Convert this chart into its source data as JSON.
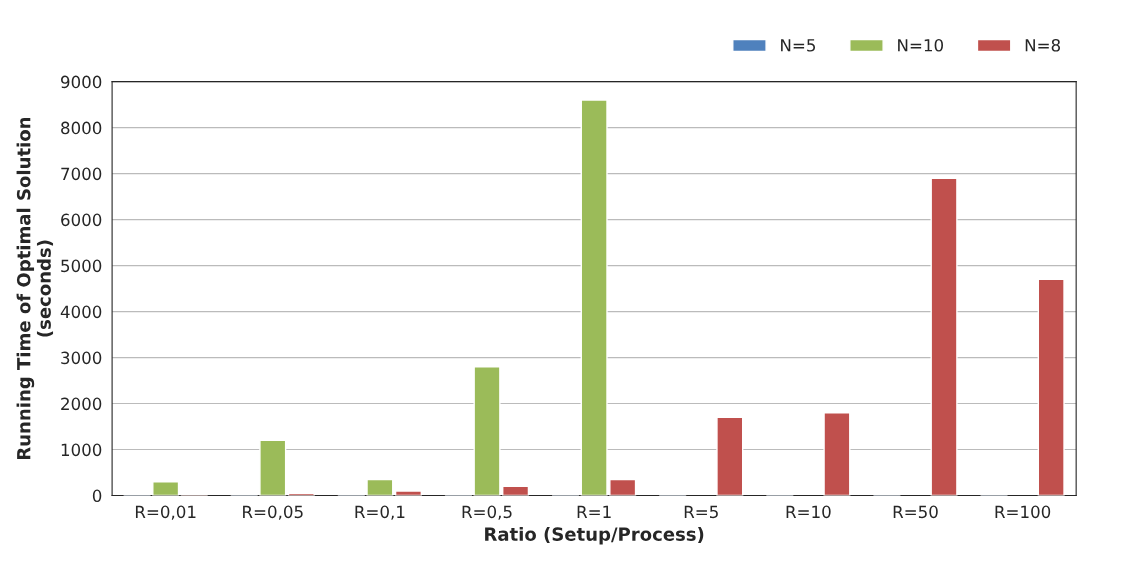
{
  "chart_data": {
    "type": "bar",
    "xlabel": "Ratio (Setup/Process)",
    "ylabel": "Running Time of Optimal Solution\n(seconds)",
    "categories": [
      "R=0,01",
      "R=0,05",
      "R=0,1",
      "R=0,5",
      "R=1",
      "R=5",
      "R=10",
      "R=50",
      "R=100"
    ],
    "series": [
      {
        "name": "N=5",
        "color": "#4f81bd",
        "values": [
          10,
          10,
          10,
          10,
          10,
          10,
          10,
          10,
          10
        ]
      },
      {
        "name": "N=10",
        "color": "#9bbb59",
        "values": [
          300,
          1200,
          350,
          2800,
          8600,
          null,
          null,
          null,
          null
        ]
      },
      {
        "name": "N=8",
        "color": "#c0504d",
        "values": [
          30,
          50,
          100,
          200,
          350,
          1700,
          1800,
          6900,
          4700
        ]
      }
    ],
    "ylim": [
      0,
      9000
    ],
    "yticks": [
      0,
      1000,
      2000,
      3000,
      4000,
      5000,
      6000,
      7000,
      8000,
      9000
    ],
    "grid": "y",
    "legend": "top right"
  }
}
